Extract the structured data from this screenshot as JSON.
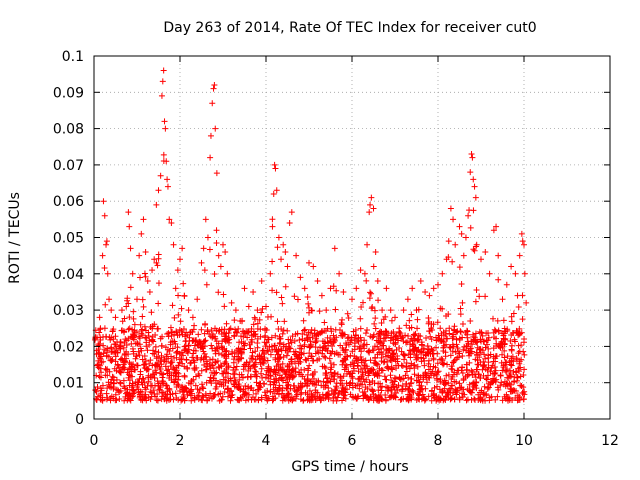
{
  "chart_data": {
    "type": "scatter",
    "title": "Day 263 of 2014, Rate Of TEC Index for receiver cut0",
    "xlabel": "GPS time / hours",
    "ylabel": "ROTI / TECUs",
    "xlim": [
      0,
      12
    ],
    "ylim": [
      0,
      0.1
    ],
    "xticks": [
      "0",
      "2",
      "4",
      "6",
      "8",
      "10",
      "12"
    ],
    "yticks": [
      "0",
      "0.01",
      "0.02",
      "0.03",
      "0.04",
      "0.05",
      "0.06",
      "0.07",
      "0.08",
      "0.09",
      "0.1"
    ],
    "grid": true,
    "marker": "+",
    "color": "#ff0000",
    "series": [
      {
        "name": "ROTI",
        "points": [
          [
            0.05,
            0.012
          ],
          [
            0.1,
            0.018
          ],
          [
            0.15,
            0.025
          ],
          [
            0.2,
            0.045
          ],
          [
            0.22,
            0.06
          ],
          [
            0.25,
            0.056
          ],
          [
            0.28,
            0.048
          ],
          [
            0.3,
            0.049
          ],
          [
            0.32,
            0.04
          ],
          [
            0.35,
            0.033
          ],
          [
            0.4,
            0.03
          ],
          [
            0.45,
            0.022
          ],
          [
            0.5,
            0.028
          ],
          [
            0.55,
            0.015
          ],
          [
            0.6,
            0.02
          ],
          [
            0.65,
            0.03
          ],
          [
            0.7,
            0.024
          ],
          [
            0.75,
            0.031
          ],
          [
            0.8,
            0.057
          ],
          [
            0.82,
            0.053
          ],
          [
            0.85,
            0.047
          ],
          [
            0.9,
            0.04
          ],
          [
            0.95,
            0.026
          ],
          [
            1.0,
            0.033
          ],
          [
            1.05,
            0.045
          ],
          [
            1.1,
            0.051
          ],
          [
            1.15,
            0.055
          ],
          [
            1.2,
            0.046
          ],
          [
            1.25,
            0.038
          ],
          [
            1.3,
            0.035
          ],
          [
            1.35,
            0.041
          ],
          [
            1.4,
            0.044
          ],
          [
            1.45,
            0.059
          ],
          [
            1.5,
            0.063
          ],
          [
            1.55,
            0.067
          ],
          [
            1.58,
            0.089
          ],
          [
            1.6,
            0.093
          ],
          [
            1.62,
            0.096
          ],
          [
            1.64,
            0.082
          ],
          [
            1.66,
            0.08
          ],
          [
            1.68,
            0.071
          ],
          [
            1.7,
            0.066
          ],
          [
            1.72,
            0.064
          ],
          [
            1.75,
            0.055
          ],
          [
            1.8,
            0.054
          ],
          [
            1.85,
            0.048
          ],
          [
            1.9,
            0.036
          ],
          [
            1.95,
            0.041
          ],
          [
            2.0,
            0.044
          ],
          [
            2.05,
            0.047
          ],
          [
            2.1,
            0.034
          ],
          [
            2.2,
            0.03
          ],
          [
            2.3,
            0.028
          ],
          [
            2.4,
            0.033
          ],
          [
            2.5,
            0.043
          ],
          [
            2.55,
            0.047
          ],
          [
            2.6,
            0.055
          ],
          [
            2.65,
            0.05
          ],
          [
            2.7,
            0.072
          ],
          [
            2.72,
            0.078
          ],
          [
            2.75,
            0.087
          ],
          [
            2.78,
            0.091
          ],
          [
            2.8,
            0.092
          ],
          [
            2.82,
            0.08
          ],
          [
            2.85,
            0.052
          ],
          [
            2.9,
            0.045
          ],
          [
            2.95,
            0.042
          ],
          [
            3.0,
            0.048
          ],
          [
            3.05,
            0.046
          ],
          [
            3.1,
            0.04
          ],
          [
            3.2,
            0.032
          ],
          [
            3.3,
            0.03
          ],
          [
            3.4,
            0.027
          ],
          [
            3.5,
            0.036
          ],
          [
            3.6,
            0.031
          ],
          [
            3.7,
            0.035
          ],
          [
            3.8,
            0.03
          ],
          [
            3.9,
            0.038
          ],
          [
            4.0,
            0.031
          ],
          [
            4.1,
            0.04
          ],
          [
            4.15,
            0.053
          ],
          [
            4.18,
            0.062
          ],
          [
            4.2,
            0.07
          ],
          [
            4.22,
            0.069
          ],
          [
            4.25,
            0.063
          ],
          [
            4.3,
            0.05
          ],
          [
            4.35,
            0.044
          ],
          [
            4.4,
            0.048
          ],
          [
            4.45,
            0.046
          ],
          [
            4.5,
            0.042
          ],
          [
            4.55,
            0.054
          ],
          [
            4.6,
            0.057
          ],
          [
            4.7,
            0.045
          ],
          [
            4.8,
            0.039
          ],
          [
            4.9,
            0.036
          ],
          [
            5.0,
            0.043
          ],
          [
            5.1,
            0.042
          ],
          [
            5.2,
            0.038
          ],
          [
            5.3,
            0.034
          ],
          [
            5.4,
            0.03
          ],
          [
            5.5,
            0.036
          ],
          [
            5.6,
            0.047
          ],
          [
            5.7,
            0.04
          ],
          [
            5.8,
            0.035
          ],
          [
            5.9,
            0.029
          ],
          [
            6.0,
            0.033
          ],
          [
            6.1,
            0.036
          ],
          [
            6.2,
            0.041
          ],
          [
            6.3,
            0.04
          ],
          [
            6.35,
            0.048
          ],
          [
            6.4,
            0.057
          ],
          [
            6.42,
            0.059
          ],
          [
            6.45,
            0.061
          ],
          [
            6.5,
            0.058
          ],
          [
            6.55,
            0.046
          ],
          [
            6.6,
            0.038
          ],
          [
            6.7,
            0.03
          ],
          [
            6.8,
            0.036
          ],
          [
            6.9,
            0.03
          ],
          [
            7.0,
            0.028
          ],
          [
            7.1,
            0.025
          ],
          [
            7.2,
            0.03
          ],
          [
            7.3,
            0.033
          ],
          [
            7.4,
            0.036
          ],
          [
            7.5,
            0.03
          ],
          [
            7.6,
            0.038
          ],
          [
            7.7,
            0.035
          ],
          [
            7.8,
            0.034
          ],
          [
            7.9,
            0.036
          ],
          [
            8.0,
            0.037
          ],
          [
            8.1,
            0.04
          ],
          [
            8.2,
            0.044
          ],
          [
            8.25,
            0.049
          ],
          [
            8.3,
            0.058
          ],
          [
            8.35,
            0.055
          ],
          [
            8.4,
            0.048
          ],
          [
            8.5,
            0.053
          ],
          [
            8.55,
            0.051
          ],
          [
            8.6,
            0.045
          ],
          [
            8.65,
            0.05
          ],
          [
            8.7,
            0.056
          ],
          [
            8.75,
            0.068
          ],
          [
            8.78,
            0.073
          ],
          [
            8.8,
            0.072
          ],
          [
            8.82,
            0.066
          ],
          [
            8.85,
            0.064
          ],
          [
            8.88,
            0.061
          ],
          [
            8.9,
            0.048
          ],
          [
            9.0,
            0.044
          ],
          [
            9.1,
            0.046
          ],
          [
            9.2,
            0.04
          ],
          [
            9.3,
            0.052
          ],
          [
            9.35,
            0.053
          ],
          [
            9.4,
            0.045
          ],
          [
            9.5,
            0.033
          ],
          [
            9.6,
            0.037
          ],
          [
            9.7,
            0.042
          ],
          [
            9.8,
            0.04
          ],
          [
            9.85,
            0.034
          ],
          [
            9.9,
            0.045
          ],
          [
            9.95,
            0.051
          ],
          [
            9.97,
            0.049
          ],
          [
            10.0,
            0.048
          ],
          [
            10.02,
            0.04
          ],
          [
            10.05,
            0.032
          ]
        ]
      }
    ]
  },
  "scatter_seed": 20140263
}
